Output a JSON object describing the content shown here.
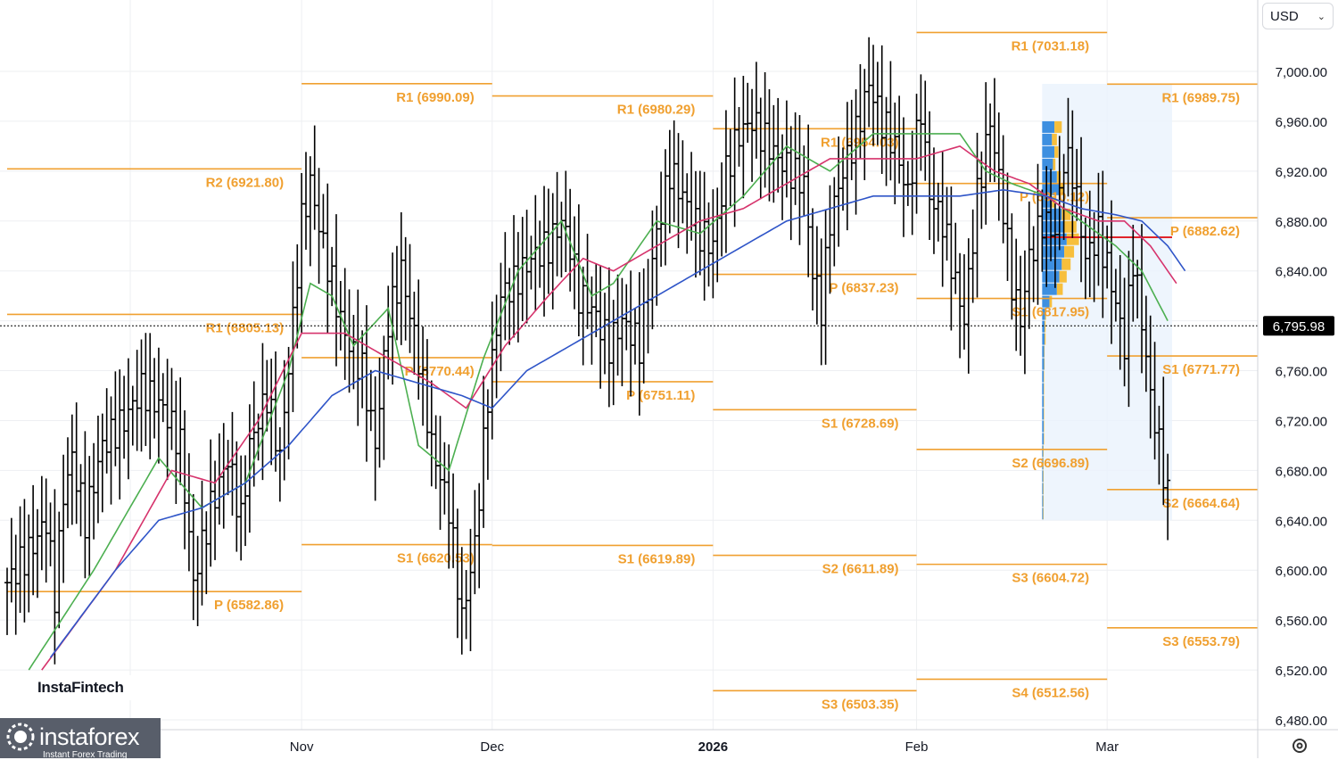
{
  "currency": "USD",
  "price_label": "6,795.98",
  "colors": {
    "pivot": "#f0a030",
    "bars": "#000000",
    "ma_green": "#4caf50",
    "ma_red": "#d6336c",
    "ma_blue": "#2f55c8",
    "vp_blue": "#3d8fe0",
    "vp_orange": "#f7bf3c",
    "poc": "#e0242b"
  },
  "brand": {
    "instafintech": "InstaFintech",
    "instaforex": "instaforex",
    "instaforex_tagline": "Instant Forex Trading"
  },
  "icons": [
    "logo-icon",
    "chevron-down-icon",
    "settings-icon"
  ],
  "chart_data": {
    "type": "ohlc-bar",
    "ylim": [
      6480,
      7060
    ],
    "y_ticks": [
      6480,
      6520,
      6560,
      6600,
      6640,
      6680,
      6720,
      6760,
      6800,
      6840,
      6880,
      6920,
      6960,
      7000
    ],
    "x_labels": [
      {
        "label": "Nov",
        "bar": 68
      },
      {
        "label": "Dec",
        "bar": 112
      },
      {
        "label": "2026",
        "bar": 163
      },
      {
        "label": "Feb",
        "bar": 210
      },
      {
        "label": "Mar",
        "bar": 254
      }
    ],
    "last_price": 6795.98,
    "pivot_levels": [
      {
        "label": "R1 (6805.13)",
        "value": 6805.13,
        "from_bar": 0,
        "to_bar": 68
      },
      {
        "label": "P (6582.86)",
        "value": 6582.86,
        "from_bar": 0,
        "to_bar": 68
      },
      {
        "label": "R2 (6921.80)",
        "value": 6921.8,
        "from_bar": 0,
        "to_bar": 68
      },
      {
        "label": "R1 (6990.09)",
        "value": 6990.09,
        "from_bar": 68,
        "to_bar": 112
      },
      {
        "label": "P (6770.44)",
        "value": 6770.44,
        "from_bar": 68,
        "to_bar": 112
      },
      {
        "label": "S1 (6620.53)",
        "value": 6620.53,
        "from_bar": 68,
        "to_bar": 112
      },
      {
        "label": "R1 (6980.29)",
        "value": 6980.29,
        "from_bar": 112,
        "to_bar": 163
      },
      {
        "label": "P (6751.11)",
        "value": 6751.11,
        "from_bar": 112,
        "to_bar": 163
      },
      {
        "label": "S1 (6619.89)",
        "value": 6619.89,
        "from_bar": 112,
        "to_bar": 163
      },
      {
        "label": "R1 (6954.03)",
        "value": 6954.03,
        "from_bar": 163,
        "to_bar": 210
      },
      {
        "label": "P (6837.23)",
        "value": 6837.23,
        "from_bar": 163,
        "to_bar": 210
      },
      {
        "label": "S1 (6728.69)",
        "value": 6728.69,
        "from_bar": 163,
        "to_bar": 210
      },
      {
        "label": "S2 (6611.89)",
        "value": 6611.89,
        "from_bar": 163,
        "to_bar": 210
      },
      {
        "label": "S3 (6503.35)",
        "value": 6503.35,
        "from_bar": 163,
        "to_bar": 210
      },
      {
        "label": "R1 (7031.18)",
        "value": 7031.18,
        "from_bar": 210,
        "to_bar": 254
      },
      {
        "label": "P (6910.12)",
        "value": 6910.12,
        "from_bar": 210,
        "to_bar": 254
      },
      {
        "label": "S1 (6817.95)",
        "value": 6817.95,
        "from_bar": 210,
        "to_bar": 254
      },
      {
        "label": "S2 (6696.89)",
        "value": 6696.89,
        "from_bar": 210,
        "to_bar": 254
      },
      {
        "label": "S3 (6604.72)",
        "value": 6604.72,
        "from_bar": 210,
        "to_bar": 254
      },
      {
        "label": "S4 (6512.56)",
        "value": 6512.56,
        "from_bar": 210,
        "to_bar": 254
      },
      {
        "label": "R1 (6989.75)",
        "value": 6989.75,
        "from_bar": 254,
        "to_bar": 290
      },
      {
        "label": "P (6882.62)",
        "value": 6882.62,
        "from_bar": 254,
        "to_bar": 290
      },
      {
        "label": "S1 (6771.77)",
        "value": 6771.77,
        "from_bar": 254,
        "to_bar": 290
      },
      {
        "label": "S2 (6664.64)",
        "value": 6664.64,
        "from_bar": 254,
        "to_bar": 290
      },
      {
        "label": "S3 (6553.79)",
        "value": 6553.79,
        "from_bar": 254,
        "to_bar": 290
      }
    ],
    "price_anchors": [
      [
        0,
        6590
      ],
      [
        6,
        6620
      ],
      [
        9,
        6640
      ],
      [
        11,
        6580
      ],
      [
        13,
        6660
      ],
      [
        15,
        6690
      ],
      [
        18,
        6640
      ],
      [
        22,
        6700
      ],
      [
        27,
        6720
      ],
      [
        31,
        6745
      ],
      [
        36,
        6730
      ],
      [
        40,
        6700
      ],
      [
        43,
        6590
      ],
      [
        47,
        6650
      ],
      [
        51,
        6690
      ],
      [
        54,
        6640
      ],
      [
        56,
        6700
      ],
      [
        60,
        6740
      ],
      [
        63,
        6690
      ],
      [
        66,
        6800
      ],
      [
        68,
        6880
      ],
      [
        70,
        6910
      ],
      [
        73,
        6860
      ],
      [
        77,
        6800
      ],
      [
        79,
        6780
      ],
      [
        82,
        6760
      ],
      [
        85,
        6700
      ],
      [
        88,
        6800
      ],
      [
        91,
        6840
      ],
      [
        95,
        6770
      ],
      [
        98,
        6700
      ],
      [
        102,
        6650
      ],
      [
        105,
        6560
      ],
      [
        108,
        6620
      ],
      [
        111,
        6740
      ],
      [
        114,
        6820
      ],
      [
        117,
        6830
      ],
      [
        121,
        6850
      ],
      [
        125,
        6860
      ],
      [
        128,
        6880
      ],
      [
        130,
        6860
      ],
      [
        132,
        6820
      ],
      [
        135,
        6810
      ],
      [
        139,
        6780
      ],
      [
        142,
        6800
      ],
      [
        146,
        6780
      ],
      [
        150,
        6870
      ],
      [
        153,
        6920
      ],
      [
        156,
        6900
      ],
      [
        160,
        6870
      ],
      [
        163,
        6860
      ],
      [
        166,
        6920
      ],
      [
        169,
        6950
      ],
      [
        172,
        6960
      ],
      [
        175,
        6945
      ],
      [
        178,
        6930
      ],
      [
        181,
        6920
      ],
      [
        184,
        6910
      ],
      [
        186,
        6840
      ],
      [
        188,
        6810
      ],
      [
        190,
        6880
      ],
      [
        193,
        6920
      ],
      [
        196,
        6950
      ],
      [
        199,
        6990
      ],
      [
        202,
        6960
      ],
      [
        205,
        6940
      ],
      [
        208,
        6900
      ],
      [
        211,
        6970
      ],
      [
        213,
        6900
      ],
      [
        216,
        6880
      ],
      [
        219,
        6830
      ],
      [
        221,
        6800
      ],
      [
        224,
        6900
      ],
      [
        227,
        6960
      ],
      [
        230,
        6890
      ],
      [
        232,
        6830
      ],
      [
        234,
        6800
      ],
      [
        236,
        6850
      ],
      [
        239,
        6880
      ],
      [
        242,
        6870
      ],
      [
        244,
        6930
      ],
      [
        246,
        6920
      ],
      [
        249,
        6850
      ],
      [
        252,
        6870
      ],
      [
        255,
        6830
      ],
      [
        258,
        6780
      ],
      [
        260,
        6850
      ],
      [
        262,
        6800
      ],
      [
        264,
        6740
      ],
      [
        266,
        6700
      ],
      [
        268,
        6660
      ]
    ],
    "ma_green_anchors": [
      [
        5,
        6520
      ],
      [
        20,
        6600
      ],
      [
        35,
        6690
      ],
      [
        45,
        6650
      ],
      [
        55,
        6670
      ],
      [
        65,
        6760
      ],
      [
        70,
        6830
      ],
      [
        75,
        6820
      ],
      [
        80,
        6780
      ],
      [
        88,
        6810
      ],
      [
        95,
        6700
      ],
      [
        102,
        6680
      ],
      [
        110,
        6770
      ],
      [
        118,
        6840
      ],
      [
        128,
        6880
      ],
      [
        135,
        6820
      ],
      [
        140,
        6830
      ],
      [
        150,
        6880
      ],
      [
        160,
        6870
      ],
      [
        170,
        6900
      ],
      [
        180,
        6940
      ],
      [
        190,
        6920
      ],
      [
        200,
        6950
      ],
      [
        210,
        6950
      ],
      [
        220,
        6950
      ],
      [
        226,
        6920
      ],
      [
        232,
        6910
      ],
      [
        240,
        6900
      ],
      [
        248,
        6880
      ],
      [
        256,
        6860
      ],
      [
        262,
        6840
      ],
      [
        268,
        6800
      ]
    ],
    "ma_red_anchors": [
      [
        8,
        6520
      ],
      [
        25,
        6600
      ],
      [
        38,
        6680
      ],
      [
        48,
        6670
      ],
      [
        58,
        6720
      ],
      [
        68,
        6790
      ],
      [
        78,
        6790
      ],
      [
        88,
        6770
      ],
      [
        98,
        6750
      ],
      [
        106,
        6730
      ],
      [
        115,
        6780
      ],
      [
        125,
        6820
      ],
      [
        133,
        6850
      ],
      [
        140,
        6840
      ],
      [
        150,
        6860
      ],
      [
        160,
        6880
      ],
      [
        170,
        6890
      ],
      [
        180,
        6910
      ],
      [
        190,
        6930
      ],
      [
        200,
        6930
      ],
      [
        210,
        6930
      ],
      [
        220,
        6940
      ],
      [
        228,
        6920
      ],
      [
        236,
        6910
      ],
      [
        244,
        6890
      ],
      [
        252,
        6880
      ],
      [
        258,
        6880
      ],
      [
        264,
        6860
      ],
      [
        270,
        6830
      ]
    ],
    "ma_blue_anchors": [
      [
        10,
        6530
      ],
      [
        25,
        6600
      ],
      [
        35,
        6640
      ],
      [
        45,
        6650
      ],
      [
        55,
        6670
      ],
      [
        65,
        6700
      ],
      [
        75,
        6740
      ],
      [
        85,
        6760
      ],
      [
        95,
        6750
      ],
      [
        105,
        6740
      ],
      [
        112,
        6730
      ],
      [
        120,
        6760
      ],
      [
        130,
        6780
      ],
      [
        140,
        6800
      ],
      [
        150,
        6820
      ],
      [
        160,
        6840
      ],
      [
        170,
        6860
      ],
      [
        180,
        6880
      ],
      [
        190,
        6890
      ],
      [
        200,
        6900
      ],
      [
        210,
        6900
      ],
      [
        220,
        6900
      ],
      [
        230,
        6905
      ],
      [
        240,
        6900
      ],
      [
        248,
        6890
      ],
      [
        256,
        6885
      ],
      [
        262,
        6880
      ],
      [
        268,
        6860
      ],
      [
        272,
        6840
      ]
    ],
    "volume_profile": {
      "from_bar": 239,
      "to_bar": 269,
      "poc_value": 6867,
      "rows": [
        [
          6955,
          0.25,
          0.15
        ],
        [
          6945,
          0.2,
          0.1
        ],
        [
          6935,
          0.25,
          0.08
        ],
        [
          6925,
          0.22,
          0.05
        ],
        [
          6915,
          0.3,
          0.08
        ],
        [
          6905,
          0.35,
          0.1
        ],
        [
          6895,
          0.2,
          0.05
        ],
        [
          6885,
          0.4,
          0.18
        ],
        [
          6875,
          0.45,
          0.25
        ],
        [
          6865,
          0.5,
          0.25
        ],
        [
          6855,
          0.45,
          0.2
        ],
        [
          6845,
          0.4,
          0.18
        ],
        [
          6835,
          0.35,
          0.15
        ],
        [
          6825,
          0.3,
          0.12
        ],
        [
          6815,
          0.15,
          0.05
        ],
        [
          6805,
          0.06,
          0.02
        ],
        [
          6795,
          0.05,
          0.02
        ],
        [
          6785,
          0.05,
          0.02
        ],
        [
          6775,
          0.04,
          0.01
        ],
        [
          6765,
          0.04,
          0.01
        ],
        [
          6755,
          0.03,
          0.01
        ],
        [
          6745,
          0.03,
          0.01
        ],
        [
          6735,
          0.03,
          0.01
        ],
        [
          6725,
          0.03,
          0.01
        ],
        [
          6715,
          0.03,
          0.01
        ],
        [
          6705,
          0.03,
          0.01
        ],
        [
          6695,
          0.02,
          0.01
        ],
        [
          6685,
          0.02,
          0.01
        ],
        [
          6675,
          0.02,
          0.01
        ],
        [
          6665,
          0.02,
          0.01
        ],
        [
          6655,
          0.02,
          0.01
        ],
        [
          6645,
          0.02,
          0.01
        ]
      ],
      "y_range": [
        6640,
        6990
      ]
    }
  }
}
